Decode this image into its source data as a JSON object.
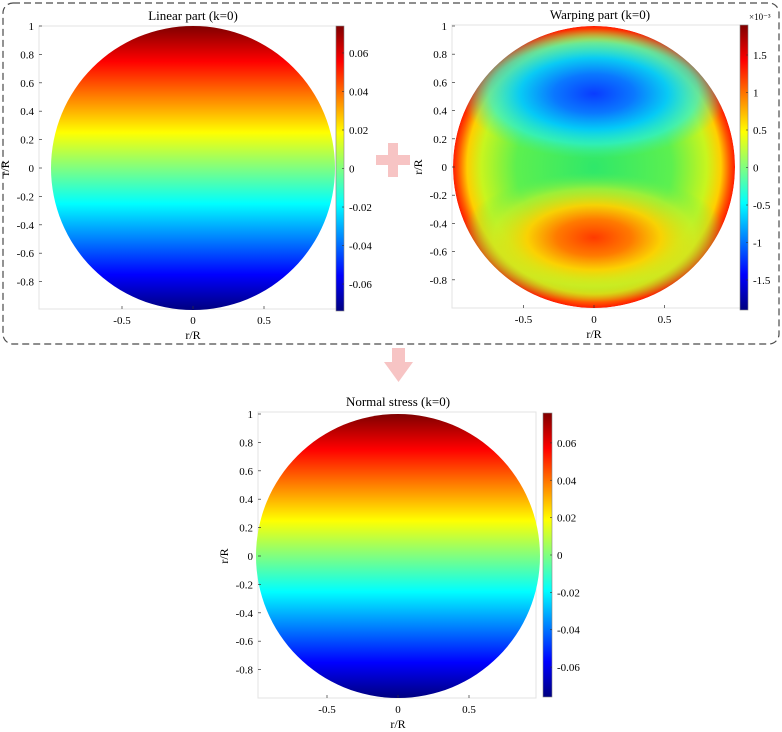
{
  "figure": {
    "plus_symbol": "+",
    "arrow_symbol": "down-arrow",
    "symbol_color": "#f7c4c4",
    "frame_color": "#4a4a4a"
  },
  "chart_data": [
    {
      "type": "heatmap",
      "id": "linear",
      "title": "Linear part (k=0)",
      "xlabel": "r/R",
      "ylabel": "r/R",
      "field": "linear",
      "domain": "unit disk",
      "xlim": [
        -1,
        1
      ],
      "ylim": [
        -1,
        1
      ],
      "xticks": [
        -0.5,
        0,
        0.5
      ],
      "xtick_labels": [
        "-0.5",
        "0",
        "0.5"
      ],
      "yticks": [
        1,
        0.8,
        0.6,
        0.4,
        0.2,
        0,
        -0.2,
        -0.4,
        -0.6,
        -0.8
      ],
      "ytick_labels": [
        "1",
        "0.8",
        "0.6",
        "0.4",
        "0.2",
        "0",
        "-0.2",
        "-0.4",
        "-0.6",
        "-0.8"
      ],
      "colormap": "jet",
      "clim": [
        -0.074,
        0.074
      ],
      "colorbar_ticks": [
        0.06,
        0.04,
        0.02,
        0,
        -0.02,
        -0.04,
        -0.06
      ],
      "colorbar_labels": [
        "0.06",
        "0.04",
        "0.02",
        "0",
        "-0.02",
        "-0.04",
        "-0.06"
      ],
      "colorbar_exponent": "",
      "grid": false
    },
    {
      "type": "heatmap",
      "id": "warping",
      "title": "Warping part (k=0)",
      "xlabel": "r/R",
      "ylabel": "r/R",
      "field": "warping",
      "domain": "unit disk",
      "xlim": [
        -1,
        1
      ],
      "ylim": [
        -1,
        1
      ],
      "xticks": [
        -0.5,
        0,
        0.5
      ],
      "xtick_labels": [
        "-0.5",
        "0",
        "0.5"
      ],
      "yticks": [
        1,
        0.8,
        0.6,
        0.4,
        0.2,
        0,
        -0.2,
        -0.4,
        -0.6,
        -0.8
      ],
      "ytick_labels": [
        "1",
        "0.8",
        "0.6",
        "0.4",
        "0.2",
        "0",
        "-0.2",
        "-0.4",
        "-0.6",
        "-0.8"
      ],
      "colormap": "jet",
      "clim": [
        -0.0019,
        0.0019
      ],
      "colorbar_ticks": [
        1.5,
        1,
        0.5,
        0,
        -0.5,
        -1,
        -1.5
      ],
      "colorbar_labels": [
        "1.5",
        "1",
        "0.5",
        "0",
        "-0.5",
        "-1",
        "-1.5"
      ],
      "colorbar_exponent": "×10⁻³",
      "grid": false
    },
    {
      "type": "heatmap",
      "id": "normal",
      "title": "Normal stress (k=0)",
      "xlabel": "r/R",
      "ylabel": "r/R",
      "field": "linear",
      "domain": "unit disk",
      "xlim": [
        -1,
        1
      ],
      "ylim": [
        -1,
        1
      ],
      "xticks": [
        -0.5,
        0,
        0.5
      ],
      "xtick_labels": [
        "-0.5",
        "0",
        "0.5"
      ],
      "yticks": [
        1,
        0.8,
        0.6,
        0.4,
        0.2,
        0,
        -0.2,
        -0.4,
        -0.6,
        -0.8
      ],
      "ytick_labels": [
        "1",
        "0.8",
        "0.6",
        "0.4",
        "0.2",
        "0",
        "-0.2",
        "-0.4",
        "-0.6",
        "-0.8"
      ],
      "colormap": "jet",
      "clim": [
        -0.076,
        0.076
      ],
      "colorbar_ticks": [
        0.06,
        0.04,
        0.02,
        0,
        -0.02,
        -0.04,
        -0.06
      ],
      "colorbar_labels": [
        "0.06",
        "0.04",
        "0.02",
        "0",
        "-0.02",
        "-0.04",
        "-0.06"
      ],
      "colorbar_exponent": "",
      "grid": false
    }
  ]
}
